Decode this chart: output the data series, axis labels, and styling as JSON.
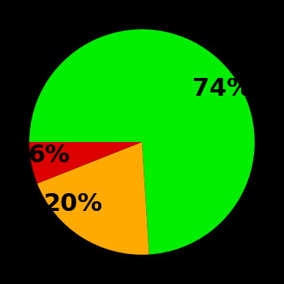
{
  "slices": [
    74,
    20,
    6
  ],
  "labels": [
    "74%",
    "20%",
    "6%"
  ],
  "colors": [
    "#00ee00",
    "#ffaa00",
    "#dd0000"
  ],
  "background_color": "#000000",
  "startangle": 180,
  "label_fontsize": 22,
  "label_fontweight": "bold",
  "labeldistance": 0.65
}
